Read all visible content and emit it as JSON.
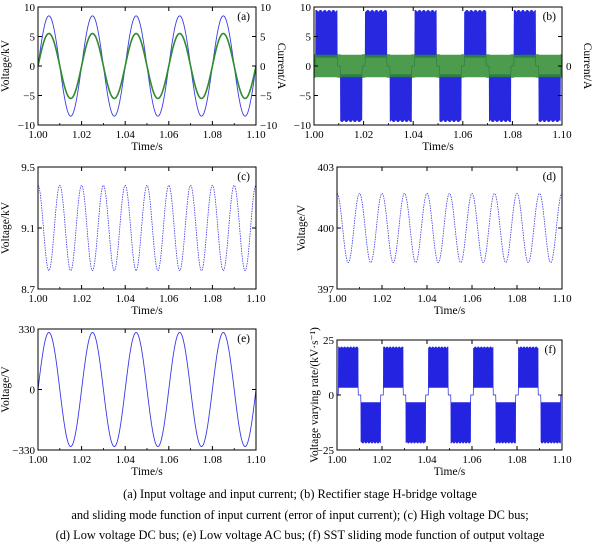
{
  "chart_data": [
    {
      "id": "a",
      "type": "line",
      "panel_label": "(a)",
      "xlabel": "Time/s",
      "ylabel": "Voltage/kV",
      "y2label": "Current/A",
      "xlim": [
        1.0,
        1.1
      ],
      "ylim": [
        -10,
        10
      ],
      "y2lim": [
        -10,
        10
      ],
      "xticks": [
        "1.00",
        "1.02",
        "1.04",
        "1.06",
        "1.08",
        "1.10"
      ],
      "yticks": [
        "10",
        "5",
        "0",
        "−5",
        "−10"
      ],
      "y2ticks": [
        "10",
        "5",
        "0",
        "−5",
        "−10"
      ],
      "series": [
        {
          "kind": "sine",
          "amplitude": 8.5,
          "frequency_hz": 50,
          "axis": "left",
          "color": "#3a3ae8"
        },
        {
          "kind": "sine",
          "amplitude": 5.5,
          "frequency_hz": 50,
          "axis": "right",
          "color": "#2e8b2e"
        }
      ]
    },
    {
      "id": "b",
      "type": "line",
      "panel_label": "(b)",
      "xlabel": "Time/s",
      "ylabel": "",
      "y2label": "Current/A",
      "xlim": [
        1.0,
        1.1
      ],
      "ylim": [
        -10,
        10
      ],
      "xticks": [
        "1.00",
        "1.02",
        "1.04",
        "1.06",
        "1.08",
        "1.10"
      ],
      "yticks": [
        "10",
        "5",
        "0",
        "−5",
        "−10"
      ],
      "y2ticks": [
        "0"
      ],
      "series": [
        {
          "kind": "pwm",
          "amplitude": 9.5,
          "frequency_hz": 50,
          "color": "#2828e0"
        },
        {
          "kind": "sliding",
          "amplitude": 2.0,
          "frequency_hz": 50,
          "color": "#2e8b2e"
        }
      ]
    },
    {
      "id": "c",
      "type": "line",
      "panel_label": "(c)",
      "xlabel": "Time/s",
      "ylabel": "Voltage/kV",
      "xlim": [
        1.0,
        1.1
      ],
      "ylim": [
        8.7,
        9.5
      ],
      "xticks": [
        "1.00",
        "1.02",
        "1.04",
        "1.06",
        "1.08",
        "1.10"
      ],
      "yticks": [
        "9.5",
        "9.1",
        "8.7"
      ],
      "series": [
        {
          "kind": "ripple",
          "offset": 9.1,
          "amplitude": 0.28,
          "frequency_hz": 100,
          "color": "#3a3ae8"
        }
      ]
    },
    {
      "id": "d",
      "type": "line",
      "panel_label": "(d)",
      "xlabel": "Time/s",
      "ylabel": "Voltage/V",
      "xlim": [
        1.0,
        1.1
      ],
      "ylim": [
        397,
        403
      ],
      "xticks": [
        "1.00",
        "1.02",
        "1.04",
        "1.06",
        "1.08",
        "1.10"
      ],
      "yticks": [
        "403",
        "400",
        "397"
      ],
      "series": [
        {
          "kind": "ripple",
          "offset": 400,
          "amplitude": 1.7,
          "frequency_hz": 100,
          "color": "#3a3ae8"
        }
      ]
    },
    {
      "id": "e",
      "type": "line",
      "panel_label": "(e)",
      "xlabel": "Time/s",
      "ylabel": "Voltage/V",
      "xlim": [
        1.0,
        1.1
      ],
      "ylim": [
        -330,
        330
      ],
      "xticks": [
        "1.00",
        "1.02",
        "1.04",
        "1.06",
        "1.08",
        "1.10"
      ],
      "yticks": [
        "330",
        "0",
        "−330"
      ],
      "series": [
        {
          "kind": "sine",
          "amplitude": 311,
          "frequency_hz": 50,
          "color": "#3a3ae8"
        }
      ]
    },
    {
      "id": "f",
      "type": "line",
      "panel_label": "(f)",
      "xlabel": "Time/s",
      "ylabel": "Voltage varying rate/(kV·s⁻¹)",
      "xlim": [
        1.0,
        1.1
      ],
      "ylim": [
        -25,
        25
      ],
      "xticks": [
        "1.00",
        "1.02",
        "1.04",
        "1.06",
        "1.08",
        "1.10"
      ],
      "yticks": [
        "25",
        "0",
        "−25"
      ],
      "series": [
        {
          "kind": "pwm_dense",
          "amplitude": 22,
          "frequency_hz": 50,
          "color": "#2323e0"
        }
      ]
    }
  ],
  "caption": [
    "(a) Input voltage and input current; (b) Rectifier stage H-bridge voltage",
    "and sliding mode function of input current (error of input current); (c) High voltage DC bus;",
    "(d) Low voltage DC bus; (e) Low voltage AC bus; (f) SST sliding mode function of output voltage"
  ]
}
